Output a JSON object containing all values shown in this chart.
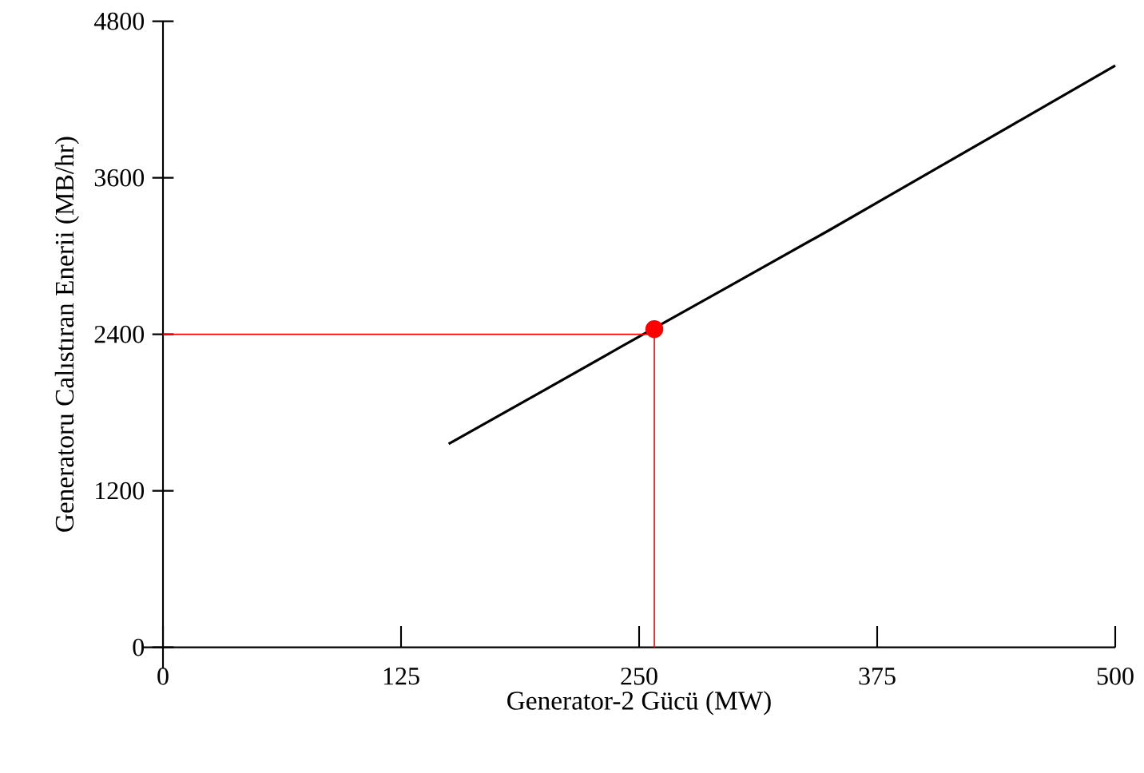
{
  "chart_data": {
    "type": "line",
    "xlabel": "Generator-2 Gücü (MW)",
    "ylabel": "Generatoru Calıstıran Enerii (MB/hr)",
    "xlim": [
      0,
      500
    ],
    "ylim": [
      0,
      4800
    ],
    "xticks": [
      0,
      125,
      250,
      375,
      500
    ],
    "yticks": [
      0,
      1200,
      2400,
      3600,
      4800
    ],
    "grid": false,
    "series": [
      {
        "color": "#000000",
        "x": [
          150,
          200,
          240,
          300,
          350,
          400,
          450,
          500
        ],
        "values": [
          1560,
          1970,
          2300,
          2790,
          3200,
          3620,
          4040,
          4460
        ]
      },
      {
        "type": "line",
        "color": "#ff0000",
        "x": [
          0,
          258,
          258
        ],
        "values": [
          2400,
          2400,
          0
        ]
      },
      {
        "type": "scatter",
        "color": "#ff0000",
        "x": [
          258
        ],
        "values": [
          2440
        ]
      }
    ]
  }
}
